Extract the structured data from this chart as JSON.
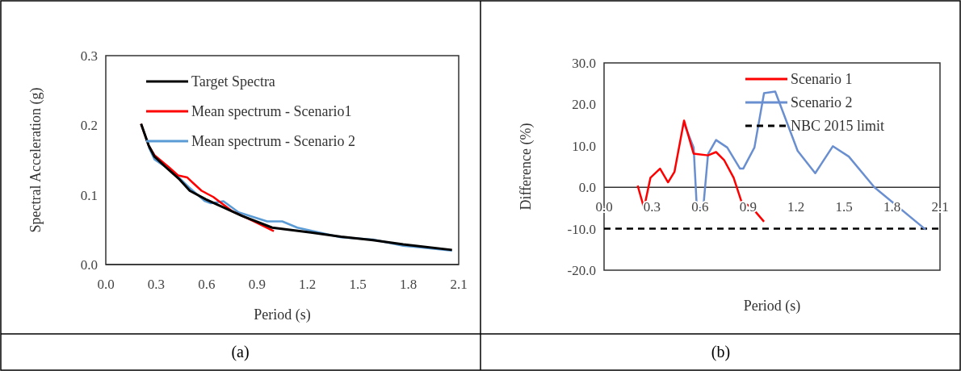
{
  "chart_data": [
    {
      "type": "line",
      "xlabel": "Period (s)",
      "ylabel": "Spectral Acceleration (g)",
      "xlim": [
        0,
        2.1
      ],
      "ylim": [
        0,
        0.3
      ],
      "xticks": [
        {
          "value": 0,
          "label": "0.0"
        },
        0.3,
        0.6,
        0.9,
        1.2,
        1.5,
        1.8,
        2.1
      ],
      "yticks": [
        {
          "value": 0,
          "label": "0.0"
        },
        0.1,
        0.2,
        0.3
      ],
      "grid": false,
      "legend": "top",
      "annotations": [
        "(a)"
      ],
      "series": [
        {
          "name": "Target Spectra",
          "color": "#000000",
          "x": [
            0.21,
            0.255,
            0.29,
            0.37,
            0.44,
            0.5,
            0.6,
            0.7,
            0.81,
            0.99,
            1.22,
            1.4,
            1.59,
            1.77,
            2.06
          ],
          "values": [
            0.202,
            0.171,
            0.155,
            0.137,
            0.122,
            0.106,
            0.093,
            0.082,
            0.07,
            0.053,
            0.046,
            0.04,
            0.035,
            0.029,
            0.021
          ]
        },
        {
          "name": "Mean spectrum - Scenario1",
          "color": "#ff0000",
          "x": [
            0.21,
            0.255,
            0.29,
            0.375,
            0.43,
            0.485,
            0.52,
            0.57,
            0.64,
            0.75,
            0.88,
            1.0
          ],
          "values": [
            0.202,
            0.171,
            0.157,
            0.14,
            0.128,
            0.125,
            0.117,
            0.106,
            0.097,
            0.077,
            0.062,
            0.048
          ]
        },
        {
          "name": "Mean spectrum - Scenario 2",
          "color": "#5b9bd5",
          "x": [
            0.255,
            0.29,
            0.4,
            0.495,
            0.59,
            0.625,
            0.7,
            0.79,
            0.96,
            1.05,
            1.14,
            1.4,
            1.59,
            1.77,
            2.06
          ],
          "values": [
            0.169,
            0.151,
            0.133,
            0.111,
            0.091,
            0.088,
            0.091,
            0.075,
            0.062,
            0.062,
            0.053,
            0.039,
            0.036,
            0.027,
            0.02
          ]
        }
      ]
    },
    {
      "type": "line",
      "xlabel": "Period (s)",
      "ylabel": "Difference (%)",
      "xlim": [
        0,
        2.1
      ],
      "ylim": [
        -20,
        30
      ],
      "xticks": [
        {
          "value": 0,
          "label": "0.0"
        },
        0.3,
        0.6,
        0.9,
        1.2,
        1.5,
        1.8,
        2.1
      ],
      "yticks": [
        {
          "value": -20,
          "label": "-20.0"
        },
        {
          "value": -10,
          "label": "-10.0"
        },
        {
          "value": 0,
          "label": "0.0"
        },
        {
          "value": 10,
          "label": "10.0"
        },
        {
          "value": 20,
          "label": "20.0"
        },
        {
          "value": 30,
          "label": "30.0"
        }
      ],
      "grid": false,
      "legend": "top right",
      "annotations": [
        "(b)"
      ],
      "ref_lines": [
        {
          "axis": "y",
          "value": -10,
          "label": "NBC 2015 limit",
          "color": "#000000",
          "line_style": "dashed"
        }
      ],
      "series": [
        {
          "name": "Scenario 1",
          "color": "#ff0000",
          "x": [
            0.21,
            0.25,
            0.29,
            0.35,
            0.4,
            0.44,
            0.5,
            0.56,
            0.58,
            0.65,
            0.7,
            0.75,
            0.81,
            0.86,
            0.92,
            1.0
          ],
          "values": [
            0.4,
            -5,
            2.3,
            4.5,
            1.2,
            3.7,
            16.1,
            8.1,
            8,
            7.7,
            8.5,
            6.6,
            2.3,
            -3.6,
            -4.7,
            -8.3
          ]
        },
        {
          "name": "Scenario 2",
          "color": "#6a8fd0",
          "x": [
            0.5,
            0.56,
            0.58,
            0.62,
            0.65,
            0.7,
            0.77,
            0.85,
            0.87,
            0.94,
            1.0,
            1.07,
            1.21,
            1.32,
            1.43,
            1.53,
            1.69,
            2.01
          ],
          "values": [
            15.4,
            9.6,
            -5,
            -5,
            8,
            11.4,
            9.6,
            4.5,
            4.5,
            9.6,
            22.7,
            23.1,
            8.8,
            3.4,
            9.9,
            7.4,
            0,
            -10.2
          ]
        }
      ]
    }
  ]
}
